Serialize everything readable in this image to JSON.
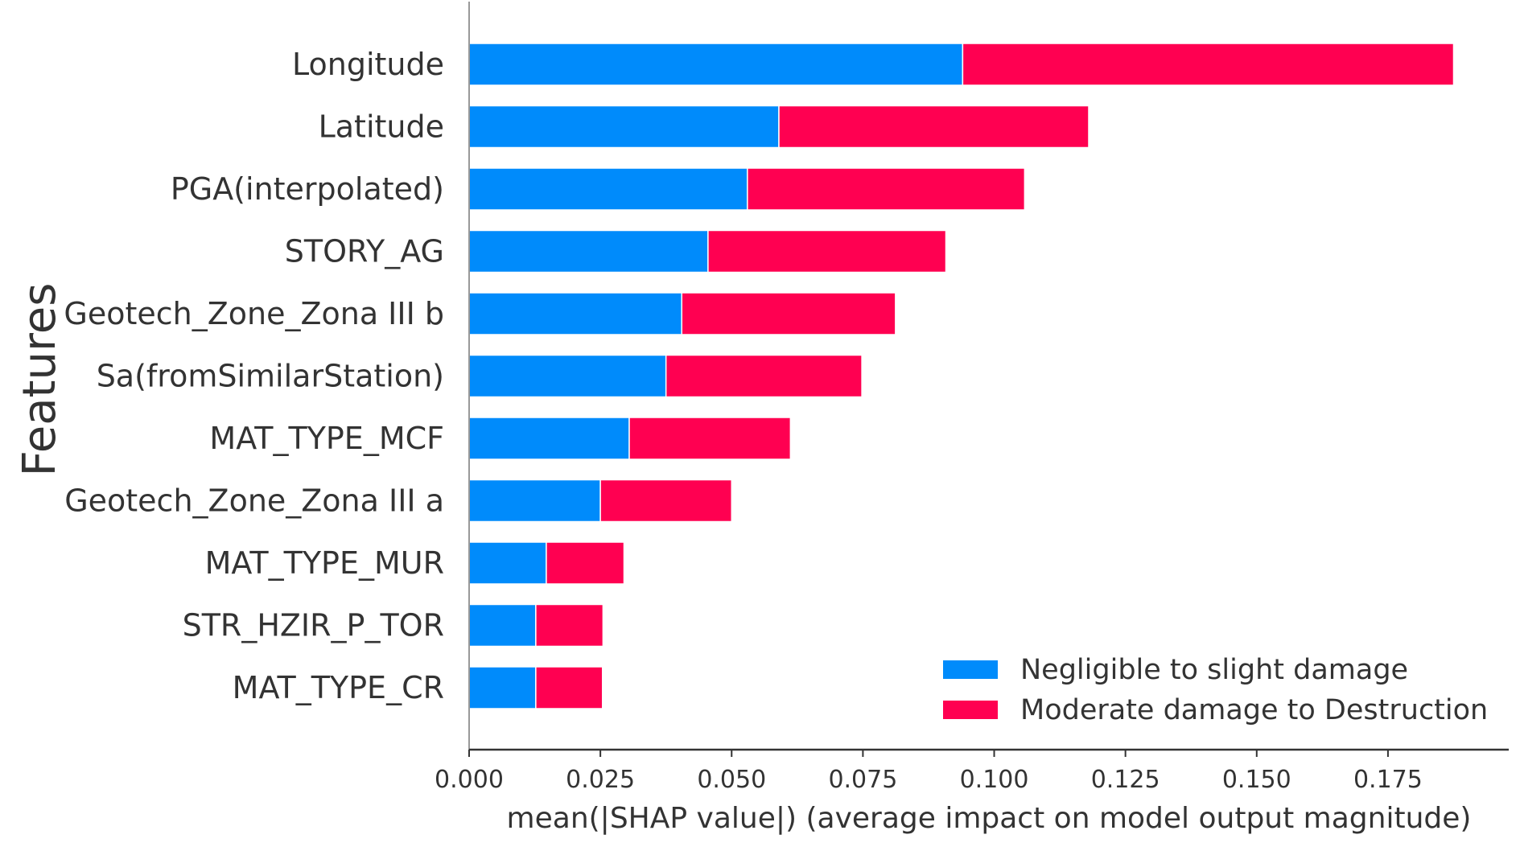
{
  "chart_data": {
    "type": "bar",
    "stacked": true,
    "orientation": "horizontal",
    "categories": [
      "Longitude",
      "Latitude",
      "PGA(interpolated)",
      "STORY_AG",
      "Geotech_Zone_Zona III b",
      "Sa(fromSimilarStation)",
      "MAT_TYPE_MCF",
      "Geotech_Zone_Zona III a",
      "MAT_TYPE_MUR",
      "STR_HZIR_P_TOR",
      "MAT_TYPE_CR"
    ],
    "series": [
      {
        "name": "Negligible to slight damage",
        "color": "#008bfb",
        "values": [
          0.094,
          0.059,
          0.053,
          0.0455,
          0.0405,
          0.0375,
          0.0305,
          0.025,
          0.0147,
          0.0127,
          0.0127
        ]
      },
      {
        "name": "Moderate damage to Destruction",
        "color": "#ff0051",
        "values": [
          0.0935,
          0.059,
          0.0528,
          0.0453,
          0.0407,
          0.0373,
          0.0307,
          0.025,
          0.0148,
          0.0128,
          0.0127
        ]
      }
    ],
    "xlabel": "mean(|SHAP value|) (average impact on model output magnitude)",
    "ylabel": "Features",
    "xlim": [
      0,
      0.198
    ],
    "xticks": [
      "0.000",
      "0.025",
      "0.050",
      "0.075",
      "0.100",
      "0.125",
      "0.150",
      "0.175"
    ],
    "legend_position": "lower-right",
    "grid": false
  }
}
